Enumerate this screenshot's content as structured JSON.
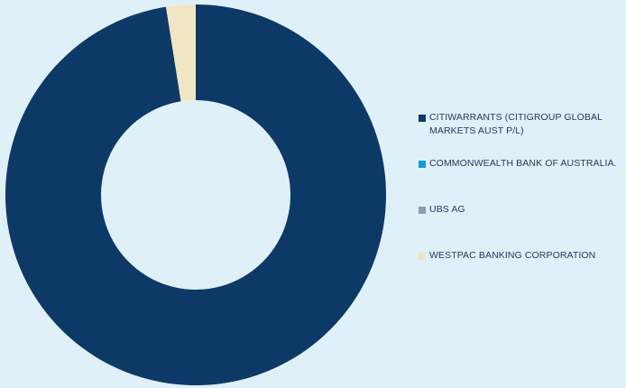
{
  "background": "#e0f0f8",
  "chart_data": {
    "type": "pie",
    "variant": "donut",
    "title": "",
    "series": [
      {
        "name": "CITIWARRANTS (CITIGROUP GLOBAL MARKETS AUST P/L)",
        "value": 97.5,
        "color": "#0d3967"
      },
      {
        "name": "COMMONWEALTH BANK OF AUSTRALIA.",
        "value": 0,
        "color": "#0f9cd8"
      },
      {
        "name": "UBS AG",
        "value": 0,
        "color": "#8a9fb1"
      },
      {
        "name": "WESTPAC BANKING CORPORATION",
        "value": 2.5,
        "color": "#f0e6c4"
      }
    ],
    "legend_position": "right",
    "data_labels": false
  }
}
